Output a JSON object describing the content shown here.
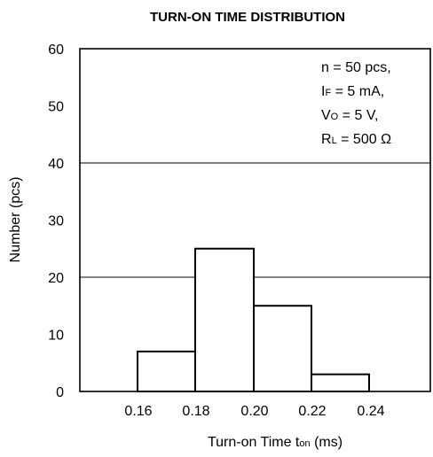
{
  "chart_data": {
    "type": "bar",
    "title": "TURN-ON TIME DISTRIBUTION",
    "xlabel": "Turn-on Time  t",
    "xlabel_sub": "on",
    "xlabel_unit": " (ms)",
    "ylabel": "Number  (pcs)",
    "xlim": [
      0.14,
      0.24
    ],
    "ylim": [
      0,
      60
    ],
    "xticks": [
      "0.16",
      "0.18",
      "0.20",
      "0.22",
      "0.24"
    ],
    "yticks": [
      "0",
      "10",
      "20",
      "30",
      "40",
      "50",
      "60"
    ],
    "gridlines_y": [
      20,
      40
    ],
    "bins": [
      {
        "x0": 0.16,
        "x1": 0.18,
        "value": 7
      },
      {
        "x0": 0.18,
        "x1": 0.2,
        "value": 25
      },
      {
        "x0": 0.2,
        "x1": 0.22,
        "value": 15
      },
      {
        "x0": 0.22,
        "x1": 0.24,
        "value": 3
      }
    ],
    "annotation": {
      "line1": "n = 50 pcs,",
      "line2_main": "I",
      "line2_sub": "F",
      "line2_rest": " = 5 mA,",
      "line3_main": "V",
      "line3_sub": "O",
      "line3_rest": " = 5 V,",
      "line4_main": "R",
      "line4_sub": "L",
      "line4_rest": " = 500 Ω"
    }
  }
}
